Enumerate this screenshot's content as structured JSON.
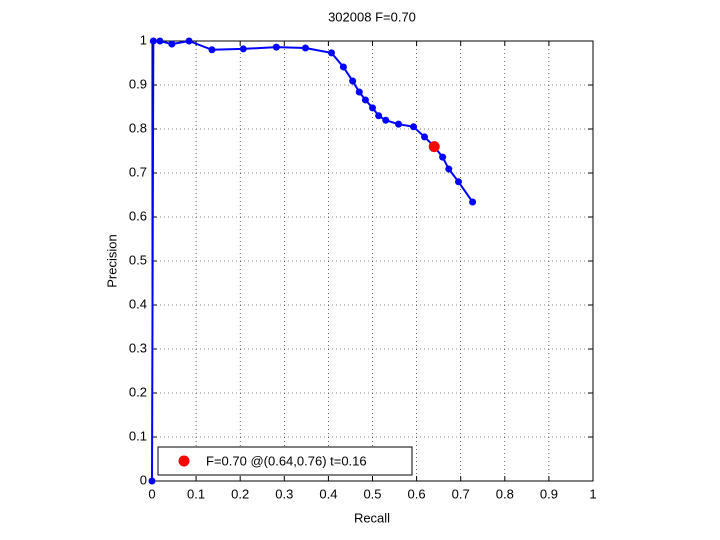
{
  "chart_data": {
    "type": "line",
    "title": "302008 F=0.70",
    "x_label": "Recall",
    "y_label": "Precision",
    "xlim": [
      0,
      1
    ],
    "ylim": [
      0,
      1
    ],
    "xticks": [
      0,
      0.1,
      0.2,
      0.3,
      0.4,
      0.5,
      0.6,
      0.7,
      0.8,
      0.9,
      1
    ],
    "yticks": [
      0,
      0.1,
      0.2,
      0.3,
      0.4,
      0.5,
      0.6,
      0.7,
      0.8,
      0.9,
      1
    ],
    "grid": true,
    "legend": "lower left",
    "series": [
      {
        "color": "#0000ff",
        "x": [
          0,
          0.003,
          0.018,
          0.045,
          0.084,
          0.136,
          0.207,
          0.282,
          0.348,
          0.407,
          0.434,
          0.455,
          0.47,
          0.484,
          0.5,
          0.514,
          0.53,
          0.559,
          0.593,
          0.618,
          0.64,
          0.659,
          0.673,
          0.695,
          0.727
        ],
        "values": [
          0,
          1,
          1,
          0.993,
          1,
          0.98,
          0.982,
          0.986,
          0.984,
          0.973,
          0.941,
          0.909,
          0.884,
          0.866,
          0.848,
          0.83,
          0.82,
          0.811,
          0.805,
          0.782,
          0.76,
          0.736,
          0.709,
          0.68,
          0.634
        ]
      },
      {
        "name": "F=0.70 @(0.64,0.76) t=0.16",
        "color": "#ff0000",
        "x": [
          0.64
        ],
        "values": [
          0.76
        ]
      }
    ]
  }
}
